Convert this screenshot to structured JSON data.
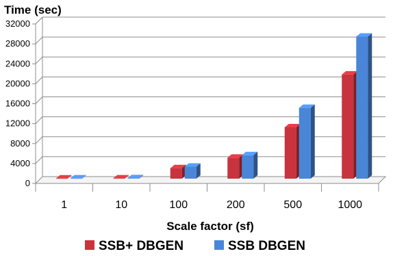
{
  "chart_data": {
    "type": "bar",
    "title": "Time (sec)",
    "xlabel": "Scale factor (sf)",
    "ylabel": "Time (sec)",
    "categories": [
      "1",
      "10",
      "100",
      "200",
      "500",
      "1000"
    ],
    "ylim": [
      0,
      32000
    ],
    "yticks": [
      "0",
      "4000",
      "8000",
      "12000",
      "16000",
      "20000",
      "24000",
      "28000",
      "32000"
    ],
    "grid": true,
    "legend_position": "bottom",
    "series": [
      {
        "name": "SSB+ DBGEN",
        "color": "#c8333d",
        "values": [
          40,
          60,
          2100,
          4200,
          10300,
          20900
        ]
      },
      {
        "name": "SSB DBGEN",
        "color": "#4a86d8",
        "values": [
          50,
          80,
          2400,
          4700,
          14200,
          28500
        ]
      }
    ]
  }
}
